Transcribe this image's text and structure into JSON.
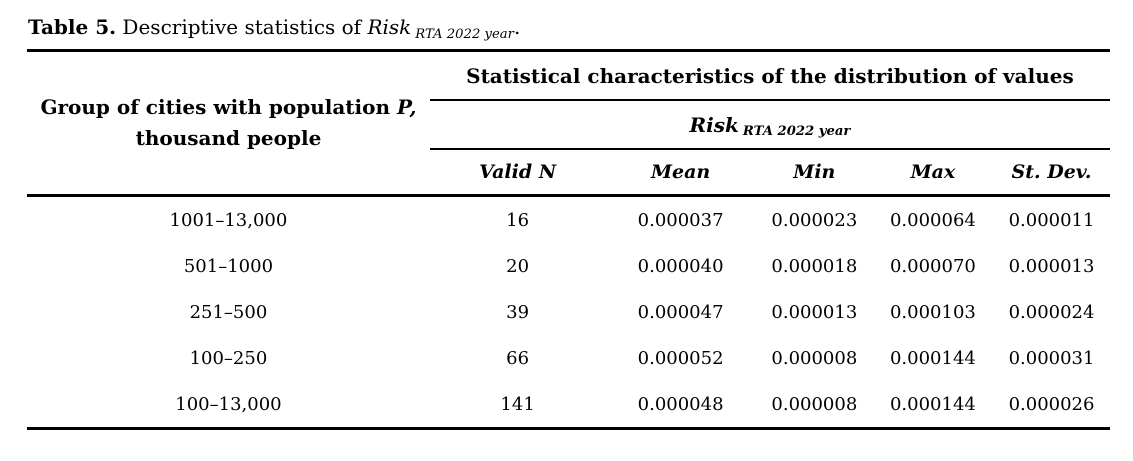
{
  "caption": {
    "label": "Table 5.",
    "text": " Descriptive statistics of ",
    "risk": "Risk",
    "risk_subscript": "RTA 2022 year",
    "period": "."
  },
  "table": {
    "group_header": {
      "text1": "Group of cities with population ",
      "p_italic": "P,",
      "text2": "thousand people"
    },
    "span_header": "Statistical characteristics of the distribution of values",
    "risk_header": {
      "label": "Risk",
      "subscript": "RTA 2022 year"
    },
    "columns": [
      "Valid N",
      "Mean",
      "Min",
      "Max",
      "St. Dev."
    ],
    "rows": [
      [
        "1001–13,000",
        "16",
        "0.000037",
        "0.000023",
        "0.000064",
        "0.000011"
      ],
      [
        "501–1000",
        "20",
        "0.000040",
        "0.000018",
        "0.000070",
        "0.000013"
      ],
      [
        "251–500",
        "39",
        "0.000047",
        "0.000013",
        "0.000103",
        "0.000024"
      ],
      [
        "100–250",
        "66",
        "0.000052",
        "0.000008",
        "0.000144",
        "0.000031"
      ],
      [
        "100–13,000",
        "141",
        "0.000048",
        "0.000008",
        "0.000144",
        "0.000026"
      ]
    ]
  }
}
